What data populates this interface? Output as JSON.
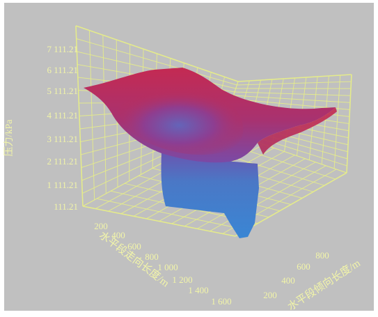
{
  "chart_data": {
    "type": "surface3d",
    "title": "",
    "zlabel": "压力/kPa",
    "xlabel": "水平段走向长度/m",
    "ylabel": "水平段倾向长度/m",
    "z_ticks": [
      "7 111.21",
      "6 111.21",
      "5 111.21",
      "4 111.21",
      "3 111.21",
      "2 111.21",
      "1 111.21",
      "111.21"
    ],
    "x_ticks": [
      "200",
      "400",
      "600",
      "800",
      "1 000",
      "1 200",
      "1 400",
      "1 600"
    ],
    "y_ticks": [
      "200",
      "400",
      "600",
      "800"
    ],
    "zlim": [
      111.21,
      7111.21
    ],
    "xlim": [
      200,
      1600
    ],
    "ylim": [
      200,
      800
    ],
    "grid": true,
    "colormap": {
      "low": "#3f7fc8",
      "high": "#c02a56"
    },
    "surface_edge_z": {
      "front_left_corner": 5200,
      "back_left_corner": 5400,
      "back_mid_peak": 6250,
      "back_right_corner": 4700,
      "front_right_corner": 4400,
      "basin_min": 2700
    },
    "pillar_bottom_z": 500,
    "colors": {
      "background": "#c0c0c0",
      "grid": "#e6ec8a",
      "tick_text": "#f2f5a8"
    }
  }
}
